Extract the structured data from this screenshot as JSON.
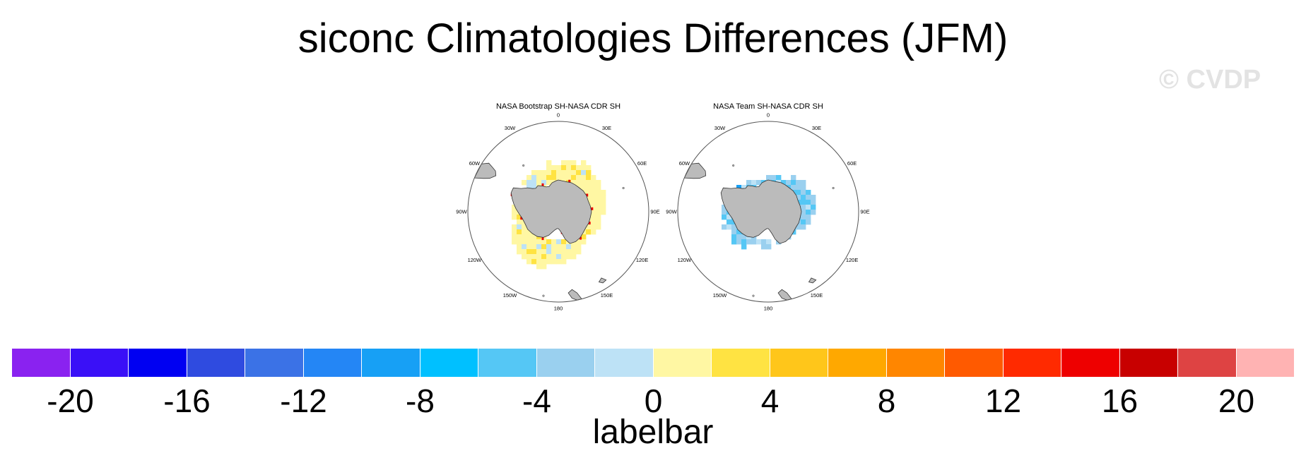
{
  "title": "siconc Climatologies Differences (JFM)",
  "watermark": "© CVDP",
  "panels": [
    {
      "title": "NASA Bootstrap SH-NASA CDR SH",
      "pattern": "positive",
      "lon_labels": [
        "0",
        "30E",
        "60E",
        "90E",
        "120E",
        "150E",
        "180",
        "150W",
        "120W",
        "90W",
        "60W",
        "30W"
      ]
    },
    {
      "title": "NASA Team SH-NASA CDR SH",
      "pattern": "negative",
      "lon_labels": [
        "0",
        "30E",
        "60E",
        "90E",
        "120E",
        "150E",
        "180",
        "150W",
        "120W",
        "90W",
        "60W",
        "30W"
      ]
    }
  ],
  "colorbar": {
    "label": "labelbar",
    "levels": [
      -20,
      -18,
      -16,
      -14,
      -12,
      -10,
      -8,
      -6,
      -4,
      -2,
      0,
      2,
      4,
      6,
      8,
      10,
      12,
      14,
      16,
      18,
      20
    ],
    "tick_labels": [
      "-20",
      "-16",
      "-12",
      "-8",
      "-4",
      "0",
      "4",
      "8",
      "12",
      "16",
      "20"
    ],
    "colors": [
      "#8a22f0",
      "#3a10f7",
      "#0000f2",
      "#2f4be0",
      "#3b72e6",
      "#2486f5",
      "#17a0f5",
      "#00c0ff",
      "#55c7f5",
      "#9ad0ef",
      "#bde2f6",
      "#fff7a3",
      "#ffe342",
      "#ffc61a",
      "#ffa800",
      "#ff8600",
      "#ff5a00",
      "#ff2a00",
      "#ee0000",
      "#c80000",
      "#de4343",
      "#ffb3b3"
    ]
  },
  "colors": {
    "land": "#bbbbbb",
    "coast": "#333333",
    "ocean": "#ffffff"
  }
}
